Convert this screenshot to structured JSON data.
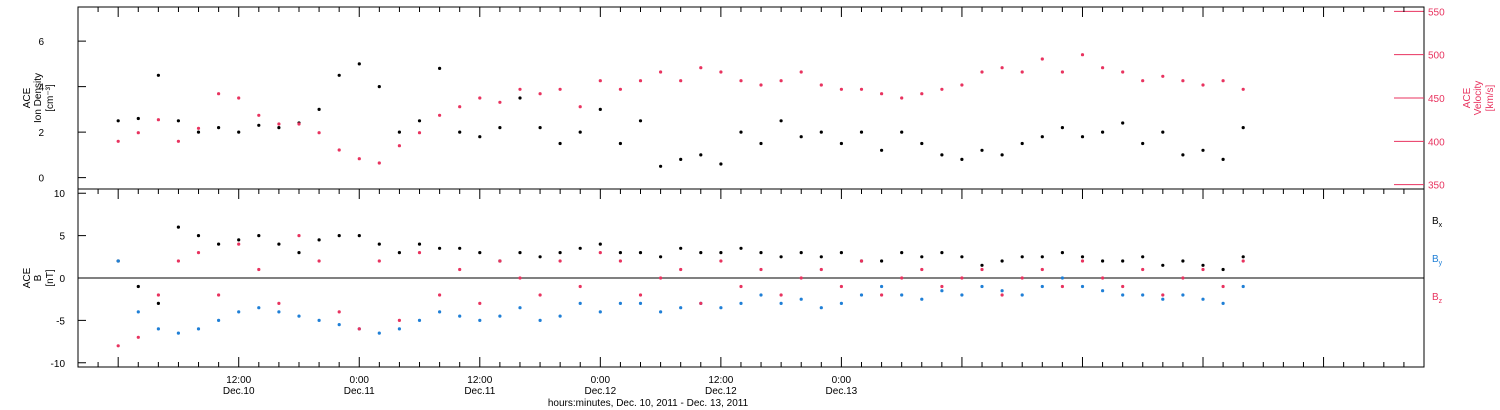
{
  "colors": {
    "black": "#000000",
    "magenta": "#e8335f",
    "blue": "#1f7fd6"
  },
  "chart_data": [
    {
      "type": "scatter",
      "panel": "top",
      "ylabel_left": [
        "ACE",
        "Ion Density",
        "[cm⁻³]"
      ],
      "ylabel_right": [
        "ACE",
        "Velocity",
        "[km/s]"
      ],
      "ylim_left": [
        -0.5,
        7.5
      ],
      "yticks_left": [
        0,
        2,
        4,
        6
      ],
      "ylim_right": [
        345,
        555
      ],
      "yticks_right": [
        350,
        400,
        450,
        500,
        550
      ],
      "series": [
        {
          "color": "#000000",
          "axis": "left",
          "x": [
            0,
            2,
            4,
            6,
            8,
            10,
            12,
            14,
            16,
            18,
            20,
            22,
            24,
            26,
            28,
            30,
            32,
            34,
            36,
            38,
            40,
            42,
            44,
            46,
            48,
            50,
            52,
            54,
            56,
            58,
            60,
            62,
            64,
            66,
            68,
            70,
            72,
            74,
            76,
            78,
            80,
            82,
            84,
            86,
            88,
            90,
            92,
            94,
            96,
            98,
            100,
            102,
            104,
            106,
            108,
            110,
            112
          ],
          "y": [
            2.5,
            2.6,
            4.5,
            2.5,
            2.0,
            2.2,
            2.0,
            2.3,
            2.2,
            2.4,
            3.0,
            4.5,
            5.0,
            4.0,
            2.0,
            2.5,
            4.8,
            2.0,
            1.8,
            2.2,
            3.5,
            2.2,
            1.5,
            2.0,
            3.0,
            1.5,
            2.5,
            0.5,
            0.8,
            1.0,
            0.6,
            2.0,
            1.5,
            2.5,
            1.8,
            2.0,
            1.5,
            2.0,
            1.2,
            2.0,
            1.5,
            1.0,
            0.8,
            1.2,
            1.0,
            1.5,
            1.8,
            2.2,
            1.8,
            2.0,
            2.4,
            1.5,
            2.0,
            1.0,
            1.2,
            0.8,
            2.2
          ]
        },
        {
          "color": "#e8335f",
          "axis": "right",
          "x": [
            0,
            2,
            4,
            6,
            8,
            10,
            12,
            14,
            16,
            18,
            20,
            22,
            24,
            26,
            28,
            30,
            32,
            34,
            36,
            38,
            40,
            42,
            44,
            46,
            48,
            50,
            52,
            54,
            56,
            58,
            60,
            62,
            64,
            66,
            68,
            70,
            72,
            74,
            76,
            78,
            80,
            82,
            84,
            86,
            88,
            90,
            92,
            94,
            96,
            98,
            100,
            102,
            104,
            106,
            108,
            110,
            112
          ],
          "y": [
            400,
            410,
            425,
            400,
            415,
            455,
            450,
            430,
            420,
            420,
            410,
            390,
            380,
            375,
            395,
            410,
            430,
            440,
            450,
            445,
            460,
            455,
            460,
            440,
            470,
            460,
            470,
            480,
            470,
            485,
            480,
            470,
            465,
            470,
            480,
            465,
            460,
            460,
            455,
            450,
            455,
            460,
            465,
            480,
            485,
            480,
            495,
            480,
            500,
            485,
            480,
            470,
            475,
            470,
            465,
            470,
            460
          ]
        }
      ]
    },
    {
      "type": "scatter",
      "panel": "bottom",
      "ylabel_left": [
        "ACE",
        "B",
        "[nT]"
      ],
      "ylim": [
        -10.5,
        10.5
      ],
      "yticks": [
        -10,
        -5,
        0,
        5,
        10
      ],
      "legend": [
        "Bx",
        "By",
        "Bz"
      ],
      "legend_labels": [
        {
          "base": "B",
          "sub": "x",
          "color": "#000000"
        },
        {
          "base": "B",
          "sub": "y",
          "color": "#1f7fd6"
        },
        {
          "base": "B",
          "sub": "z",
          "color": "#e8335f"
        }
      ],
      "series": [
        {
          "name": "Bx",
          "color": "#000000",
          "x": [
            0,
            2,
            4,
            6,
            8,
            10,
            12,
            14,
            16,
            18,
            20,
            22,
            24,
            26,
            28,
            30,
            32,
            34,
            36,
            38,
            40,
            42,
            44,
            46,
            48,
            50,
            52,
            54,
            56,
            58,
            60,
            62,
            64,
            66,
            68,
            70,
            72,
            74,
            76,
            78,
            80,
            82,
            84,
            86,
            88,
            90,
            92,
            94,
            96,
            98,
            100,
            102,
            104,
            106,
            108,
            110,
            112
          ],
          "y": [
            2,
            -1,
            -3,
            6,
            5,
            4,
            4.5,
            5,
            4,
            3,
            4.5,
            5,
            5,
            4,
            3,
            4,
            3.5,
            3.5,
            3,
            2,
            3,
            2.5,
            3,
            3.5,
            4,
            3,
            3,
            2.5,
            3.5,
            3,
            3,
            3.5,
            3,
            2.5,
            3,
            2.5,
            3,
            2,
            2,
            3,
            2.5,
            3,
            2.5,
            1.5,
            2,
            2.5,
            2.5,
            3,
            2.5,
            2,
            2,
            2.5,
            1.5,
            2,
            1.5,
            1,
            2.5
          ]
        },
        {
          "name": "By",
          "color": "#1f7fd6",
          "x": [
            0,
            2,
            4,
            6,
            8,
            10,
            12,
            14,
            16,
            18,
            20,
            22,
            24,
            26,
            28,
            30,
            32,
            34,
            36,
            38,
            40,
            42,
            44,
            46,
            48,
            50,
            52,
            54,
            56,
            58,
            60,
            62,
            64,
            66,
            68,
            70,
            72,
            74,
            76,
            78,
            80,
            82,
            84,
            86,
            88,
            90,
            92,
            94,
            96,
            98,
            100,
            102,
            104,
            106,
            108,
            110,
            112
          ],
          "y": [
            2,
            -4,
            -6,
            -6.5,
            -6,
            -5,
            -4,
            -3.5,
            -4,
            -4.5,
            -5,
            -5.5,
            -6,
            -6.5,
            -6,
            -5,
            -4,
            -4.5,
            -5,
            -4.5,
            -3.5,
            -5,
            -4.5,
            -3,
            -4,
            -3,
            -3,
            -4,
            -3.5,
            -3,
            -3.5,
            -3,
            -2,
            -3,
            -2.5,
            -3.5,
            -3,
            -2,
            -1,
            -2,
            -2.5,
            -1.5,
            -2,
            -1,
            -1.5,
            -2,
            -1,
            0,
            -1,
            -1.5,
            -2,
            -2,
            -2.5,
            -2,
            -2.5,
            -3,
            -1
          ]
        },
        {
          "name": "Bz",
          "color": "#e8335f",
          "x": [
            0,
            2,
            4,
            6,
            8,
            10,
            12,
            14,
            16,
            18,
            20,
            22,
            24,
            26,
            28,
            30,
            32,
            34,
            36,
            38,
            40,
            42,
            44,
            46,
            48,
            50,
            52,
            54,
            56,
            58,
            60,
            62,
            64,
            66,
            68,
            70,
            72,
            74,
            76,
            78,
            80,
            82,
            84,
            86,
            88,
            90,
            92,
            94,
            96,
            98,
            100,
            102,
            104,
            106,
            108,
            110,
            112
          ],
          "y": [
            -8,
            -7,
            -2,
            2,
            3,
            -2,
            4,
            1,
            -3,
            5,
            2,
            -4,
            -6,
            2,
            -5,
            3,
            -2,
            1,
            -3,
            2,
            0,
            -2,
            2,
            -1,
            3,
            2,
            -2,
            0,
            1,
            -3,
            2,
            -1,
            1,
            -2,
            0,
            1,
            -1,
            2,
            -2,
            0,
            1,
            -1,
            0,
            1,
            -2,
            0,
            1,
            -1,
            2,
            0,
            -1,
            1,
            -2,
            0,
            1,
            -1,
            2
          ]
        }
      ]
    }
  ],
  "xaxis": {
    "xlim_hours": [
      -4,
      130
    ],
    "ticks": [
      {
        "h": 12,
        "time": "12:00",
        "date": "Dec.10"
      },
      {
        "h": 24,
        "time": "0:00",
        "date": "Dec.11"
      },
      {
        "h": 36,
        "time": "12:00",
        "date": "Dec.11"
      },
      {
        "h": 48,
        "time": "0:00",
        "date": "Dec.12"
      },
      {
        "h": 60,
        "time": "12:00",
        "date": "Dec.12"
      },
      {
        "h": 72,
        "time": "0:00",
        "date": "Dec.13"
      }
    ],
    "title": "hours:minutes, Dec. 10, 2011 - Dec. 13, 2011"
  }
}
